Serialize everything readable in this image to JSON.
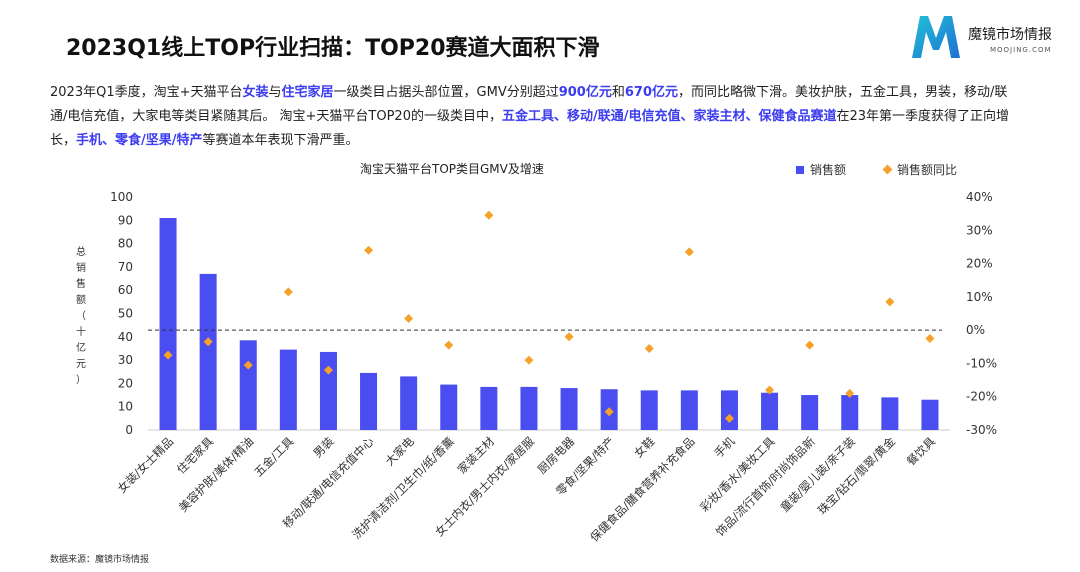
{
  "header": {
    "title": "2023Q1线上TOP行业扫描：TOP20赛道大面积下滑",
    "brand_name": "魔镜市场情报",
    "brand_domain": "MOOJING.COM"
  },
  "description": {
    "s1": "2023年Q1季度，淘宝+天猫平台",
    "h1": "女装",
    "s2": "与",
    "h2": "住宅家居",
    "s3": "一级类目占据头部位置，GMV分别超过",
    "h3": "900亿元",
    "s4": "和",
    "h4": "670亿元",
    "s5": "，而同比略微下滑。美妆护肤，五金工具，男装，移动/联通/电信充值，大家电等类目紧随其后。 淘宝+天猫平台TOP20的一级类目中，",
    "h5": "五金工具、移动/联通/电信充值、家装主材、保健食品赛道",
    "s6": "在23年第一季度获得了正向增长，",
    "h6": "手机、零食/坚果/特产",
    "s7": "等赛道本年表现下滑严重。"
  },
  "footer": {
    "source": "数据来源：魔镜市场情报"
  },
  "colors": {
    "bar": "#4a4ef0",
    "dot": "#f5a12a",
    "highlight": "#3c3cf0",
    "axis": "#cccccc",
    "zero_line": "#333333"
  },
  "chart_data": {
    "type": "bar",
    "title": "淘宝天猫平台TOP类目GMV及增速",
    "ylabel": "总销售额（十亿元）",
    "ylabel_chars": [
      "总",
      "销",
      "售",
      "额",
      "（",
      "十",
      "亿",
      "元",
      "）"
    ],
    "ylim": [
      0,
      100
    ],
    "yticks": [
      "0",
      "10",
      "20",
      "30",
      "40",
      "50",
      "60",
      "70",
      "80",
      "90",
      "100"
    ],
    "y2lim": [
      -30,
      40
    ],
    "y2ticks": [
      "-30%",
      "-20%",
      "-10%",
      "0%",
      "10%",
      "20%",
      "30%",
      "40%"
    ],
    "legend_position": "top-right",
    "categories": [
      "女装/女士精品",
      "住宅家具",
      "美容护肤/美体/精油",
      "五金/工具",
      "男装",
      "移动/联通/电信充值中心",
      "大家电",
      "洗护清洁剂/卫生巾/纸/香薰",
      "家装主材",
      "女士内衣/男士内衣/家居服",
      "厨房电器",
      "零食/坚果/特产",
      "女鞋",
      "保健食品/膳食营养补充食品",
      "手机",
      "彩妆/香水/美妆工具",
      "饰品/流行首饰/时尚饰品新",
      "童装/婴儿装/亲子装",
      "珠宝/钻石/翡翠/黄金",
      "餐饮具"
    ],
    "series": [
      {
        "name": "销售额",
        "type": "bar",
        "axis": "left",
        "values": [
          91,
          67,
          38.5,
          34.5,
          33.5,
          24.5,
          23,
          19.5,
          18.5,
          18.5,
          18,
          17.5,
          17,
          17,
          17,
          16,
          15,
          15,
          14,
          13
        ]
      },
      {
        "name": "销售额同比",
        "type": "scatter",
        "axis": "right",
        "values": [
          -7.5,
          -3.5,
          -10.5,
          11.5,
          -12,
          24,
          3.5,
          -4.5,
          34.5,
          -9,
          -2,
          -24.5,
          -5.5,
          23.5,
          -26.5,
          -18,
          -4.5,
          -19,
          8.5,
          -2.5
        ]
      }
    ]
  }
}
